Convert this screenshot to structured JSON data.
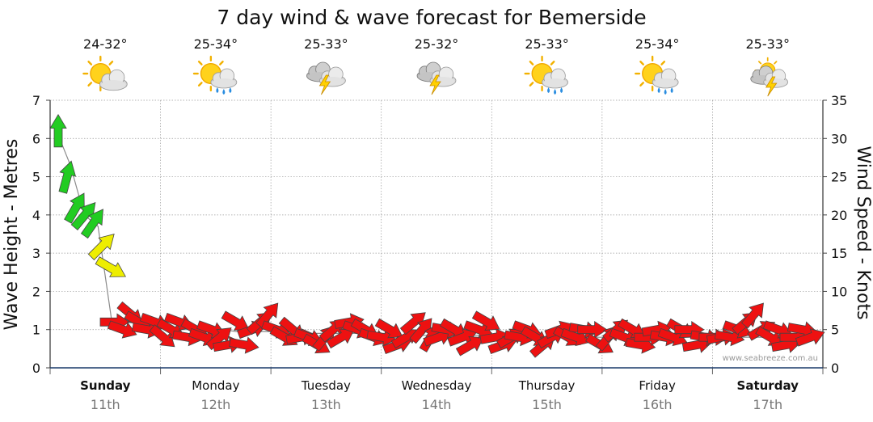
{
  "chart_data": {
    "type": "line",
    "title": "7 day wind & wave forecast for Bemerside",
    "ylabel_left": "Wave Height - Metres",
    "ylabel_right": "Wind Speed - Knots",
    "ylim_left": [
      0,
      7
    ],
    "ylim_right": [
      0,
      35
    ],
    "yticks_left": [
      "0",
      "1",
      "2",
      "3",
      "4",
      "5",
      "6",
      "7"
    ],
    "yticks_right": [
      "0",
      "5",
      "10",
      "15",
      "20",
      "25",
      "30",
      "35"
    ],
    "grid": true,
    "watermark": "www.seabreeze.com.au",
    "days": [
      {
        "day": "Sunday",
        "date": "11th",
        "temp": "24-32°",
        "weather": "partly-cloudy-icon",
        "bold": true
      },
      {
        "day": "Monday",
        "date": "12th",
        "temp": "25-34°",
        "weather": "sun-showers-icon",
        "bold": false
      },
      {
        "day": "Tuesday",
        "date": "13th",
        "temp": "25-33°",
        "weather": "thunderstorm-icon",
        "bold": false
      },
      {
        "day": "Wednesday",
        "date": "14th",
        "temp": "25-32°",
        "weather": "thunderstorm-icon",
        "bold": false
      },
      {
        "day": "Thursday",
        "date": "15th",
        "temp": "25-33°",
        "weather": "sun-showers-icon",
        "bold": false
      },
      {
        "day": "Friday",
        "date": "16th",
        "temp": "25-34°",
        "weather": "sun-showers-icon",
        "bold": false
      },
      {
        "day": "Saturday",
        "date": "17th",
        "temp": "25-33°",
        "weather": "sun-thunder-icon",
        "bold": true
      }
    ],
    "series": [
      {
        "values": [
          6.2,
          5.3,
          4.0,
          3.7,
          1.2,
          1.2,
          1.15,
          1.1,
          1.05,
          1.0,
          1.0,
          1.0,
          1.0,
          0.95,
          0.95,
          0.95,
          0.95,
          0.95,
          0.9,
          0.9,
          0.9,
          0.9,
          0.9,
          0.9,
          0.9,
          0.85,
          0.85,
          0.85,
          0.85,
          0.85,
          0.85,
          0.85,
          0.85,
          0.85,
          0.8,
          0.8,
          0.8,
          0.8,
          0.8,
          0.8,
          0.8,
          0.8,
          0.8,
          0.8,
          0.8,
          0.8,
          0.8,
          0.8,
          0.8,
          0.8,
          0.8,
          0.8,
          0.8,
          0.8,
          0.8,
          0.8
        ]
      }
    ],
    "wind": {
      "knots": [
        31,
        25,
        21,
        20,
        19,
        16,
        13,
        6,
        5,
        7,
        6,
        5,
        6,
        4,
        5,
        6,
        4,
        5,
        4,
        5,
        4,
        3,
        6,
        3,
        5,
        6,
        7,
        5,
        4,
        5,
        4,
        4,
        3,
        4,
        5,
        4,
        6,
        5,
        5,
        4,
        4,
        5,
        3,
        4,
        6,
        5,
        4,
        4,
        5,
        5,
        4,
        3,
        5,
        6,
        4,
        3,
        4,
        4,
        5,
        4,
        3,
        4,
        5,
        4,
        4,
        5,
        5,
        3,
        4,
        5,
        4,
        5,
        3,
        4,
        5,
        4,
        4,
        5,
        5,
        3,
        4,
        4,
        4,
        4,
        5,
        6,
        7,
        5,
        4,
        5,
        3,
        4,
        5,
        4
      ],
      "dir_deg": [
        180,
        195,
        210,
        220,
        215,
        225,
        300,
        270,
        290,
        310,
        300,
        280,
        290,
        310,
        300,
        290,
        280,
        300,
        290,
        290,
        230,
        260,
        300,
        280,
        250,
        230,
        220,
        290,
        300,
        310,
        260,
        290,
        300,
        220,
        230,
        240,
        260,
        290,
        300,
        290,
        280,
        300,
        250,
        240,
        230,
        220,
        210,
        250,
        280,
        300,
        250,
        240,
        290,
        300,
        260,
        250,
        240,
        280,
        290,
        300,
        230,
        240,
        250,
        300,
        290,
        280,
        270,
        300,
        220,
        230,
        290,
        300,
        280,
        270,
        260,
        280,
        290,
        300,
        270,
        260,
        280,
        270,
        260,
        280,
        290,
        230,
        220,
        240,
        300,
        290,
        260,
        270,
        280,
        250
      ],
      "color_legend": {
        "strong": "#22cc22",
        "moderate": "#eeee00",
        "light": "#ee1111"
      }
    }
  }
}
